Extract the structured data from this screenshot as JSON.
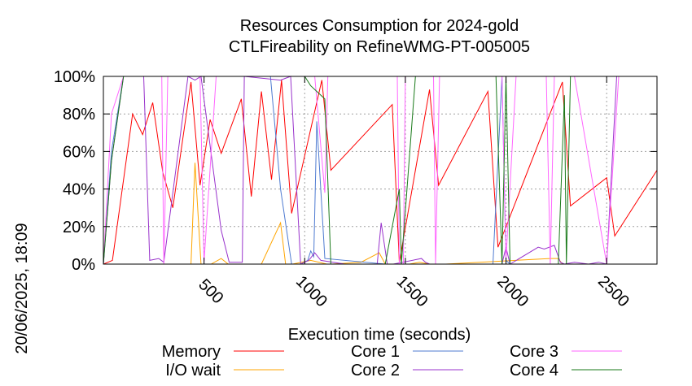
{
  "chart_data": {
    "type": "line",
    "title": "Resources Consumption for 2024-gold",
    "subtitle": "CTLFireability on RefineWMG-PT-005005",
    "xlabel": "Execution time (seconds)",
    "ylabel": "",
    "side_label": "20/06/2025, 18:09",
    "xlim": [
      0,
      2750
    ],
    "ylim": [
      0,
      100
    ],
    "x_ticks": [
      500,
      1000,
      1500,
      2000,
      2500
    ],
    "x_tick_labels": [
      "500",
      "1000",
      "1500",
      "2000",
      "2500"
    ],
    "y_ticks": [
      0,
      20,
      40,
      60,
      80,
      100
    ],
    "y_tick_labels": [
      "0%",
      "20%",
      "40%",
      "60%",
      "80%",
      "100%"
    ],
    "grid": true,
    "legend_position": "bottom",
    "series": [
      {
        "name": "Memory",
        "color": "#ff0000",
        "x": [
          0,
          45,
          145,
          195,
          245,
          295,
          345,
          435,
          480,
          530,
          585,
          685,
          735,
          785,
          835,
          885,
          935,
          1085,
          1130,
          1435,
          1470,
          1620,
          1665,
          1910,
          1960,
          2280,
          2320,
          2500,
          2540,
          2750
        ],
        "y": [
          0,
          2,
          80,
          69,
          86,
          49,
          30,
          97,
          42,
          77,
          59,
          88,
          36,
          92,
          45,
          98,
          27,
          98,
          50,
          85,
          1,
          93,
          42,
          92,
          9,
          97,
          31,
          46,
          15,
          50
        ]
      },
      {
        "name": "I/O wait",
        "color": "#ffa500",
        "x": [
          0,
          95,
          435,
          455,
          485,
          535,
          585,
          620,
          685,
          785,
          880,
          905,
          940,
          1030,
          1110,
          1135,
          1280,
          1370,
          1400,
          1470,
          1520,
          1570,
          1620,
          1700,
          2220,
          2260,
          2280,
          2350,
          2500,
          2750
        ],
        "y": [
          0,
          0,
          0,
          54,
          0,
          0,
          3,
          0,
          0,
          0,
          22,
          0,
          0,
          2,
          0,
          0,
          1,
          6,
          0,
          0,
          0,
          1,
          0,
          0,
          3,
          3,
          0,
          0,
          0,
          0
        ],
        "fill_band": true
      },
      {
        "name": "Core 1",
        "color": "#4f7bd1",
        "x": [
          0,
          40,
          100,
          150,
          200,
          250,
          420,
          470,
          530,
          620,
          830,
          880,
          935,
          980,
          1015,
          1030,
          1045,
          1060,
          1100,
          1400,
          1450,
          1470,
          1910,
          1935,
          1980,
          2000,
          2020,
          2050,
          2300,
          2550,
          2750
        ],
        "y": [
          0,
          60,
          100,
          100,
          100,
          100,
          100,
          100,
          100,
          100,
          100,
          40,
          0,
          0,
          2,
          7,
          4,
          76,
          3,
          0,
          0,
          0,
          0,
          0,
          100,
          2,
          0,
          0,
          0,
          0,
          0
        ]
      },
      {
        "name": "Core 2",
        "color": "#9933cc",
        "x": [
          0,
          40,
          100,
          150,
          200,
          230,
          275,
          300,
          420,
          455,
          485,
          585,
          625,
          690,
          700,
          880,
          930,
          980,
          1020,
          1050,
          1080,
          1200,
          1360,
          1380,
          1410,
          1440,
          1580,
          1600,
          1620,
          1700,
          1980,
          2000,
          2020,
          2160,
          2190,
          2240,
          2270,
          2290,
          2340,
          2410,
          2460,
          2500,
          2550,
          2750
        ],
        "y": [
          0,
          55,
          100,
          100,
          100,
          2,
          3,
          1,
          100,
          98,
          100,
          18,
          1,
          1,
          100,
          98,
          100,
          0,
          2,
          6,
          2,
          0,
          0,
          22,
          0,
          0,
          3,
          1,
          0,
          0,
          0,
          9,
          0,
          9,
          8,
          10,
          1,
          0,
          1,
          0,
          1,
          0,
          100,
          100
        ]
      },
      {
        "name": "Core 3",
        "color": "#ff66ff",
        "x": [
          0,
          40,
          100,
          150,
          190,
          230,
          250,
          270,
          290,
          300,
          320,
          340,
          360,
          420,
          480,
          500,
          560,
          600,
          700,
          770,
          800,
          860,
          880,
          950,
          1000,
          1050,
          1100,
          1115,
          1130,
          1300,
          1460,
          1470,
          1490,
          1500,
          1640,
          1650,
          1670,
          1700,
          1980,
          2000,
          2050,
          2080,
          2200,
          2220,
          2240,
          2260,
          2280,
          2290,
          2300,
          2340,
          2500,
          2560,
          2750
        ],
        "y": [
          0,
          80,
          100,
          100,
          100,
          100,
          100,
          100,
          100,
          0,
          100,
          100,
          100,
          100,
          100,
          1,
          100,
          100,
          100,
          100,
          100,
          100,
          100,
          100,
          100,
          100,
          38,
          100,
          100,
          100,
          100,
          0,
          0,
          100,
          100,
          0,
          100,
          100,
          100,
          2,
          100,
          100,
          100,
          0,
          100,
          100,
          100,
          100,
          100,
          100,
          0,
          100,
          100
        ]
      },
      {
        "name": "Core 4",
        "color": "#1a7a1a",
        "x": [
          0,
          40,
          100,
          150,
          200,
          300,
          400,
          500,
          600,
          700,
          800,
          900,
          1000,
          1030,
          1100,
          1130,
          1400,
          1470,
          1480,
          1550,
          1600,
          1620,
          1950,
          1980,
          2000,
          2020,
          2260,
          2290,
          2300,
          2320,
          2500,
          2750
        ],
        "y": [
          0,
          55,
          100,
          100,
          100,
          100,
          100,
          100,
          100,
          100,
          100,
          100,
          100,
          95,
          88,
          0,
          0,
          40,
          0,
          100,
          100,
          100,
          100,
          0,
          100,
          0,
          0,
          90,
          0,
          100,
          100,
          100
        ]
      }
    ]
  }
}
